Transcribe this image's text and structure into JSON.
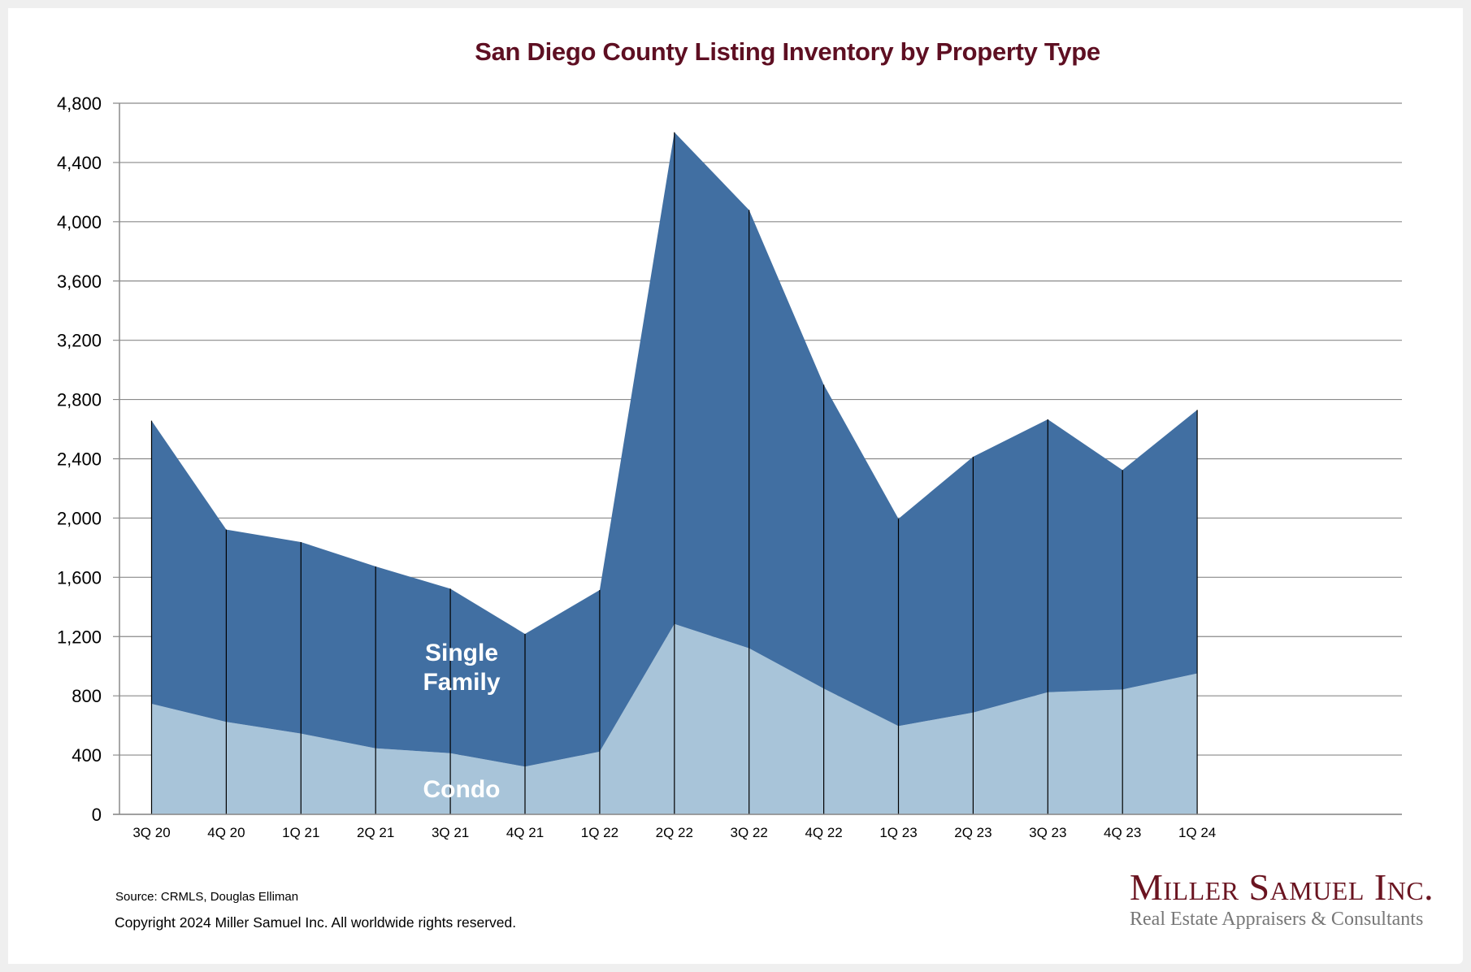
{
  "chart_data": {
    "type": "area",
    "stacked": true,
    "title": "San Diego County Listing Inventory by Property Type",
    "xlabel": "",
    "ylabel": "",
    "ylim": [
      0,
      4800
    ],
    "yticks": [
      0,
      400,
      800,
      1200,
      1600,
      2000,
      2400,
      2800,
      3200,
      3600,
      4000,
      4400,
      4800
    ],
    "ytick_labels": [
      "0",
      "400",
      "800",
      "1,200",
      "1,600",
      "2,000",
      "2,400",
      "2,800",
      "3,200",
      "3,600",
      "4,000",
      "4,400",
      "4,800"
    ],
    "grid": true,
    "categories": [
      "3Q 20",
      "4Q 20",
      "1Q 21",
      "2Q 21",
      "3Q 21",
      "4Q 21",
      "1Q 22",
      "2Q 22",
      "3Q 22",
      "4Q 22",
      "1Q 23",
      "2Q 23",
      "3Q 23",
      "4Q 23",
      "1Q 24"
    ],
    "series": [
      {
        "name": "Condo",
        "color": "#a8c4d9",
        "values": [
          746,
          624,
          545,
          446,
          413,
          322,
          423,
          1285,
          1121,
          849,
          596,
          687,
          824,
          843,
          951
        ]
      },
      {
        "name": "Single Family",
        "color": "#416fa2",
        "values": [
          1911,
          1298,
          1293,
          1227,
          1110,
          896,
          1091,
          3319,
          2958,
          2051,
          1399,
          1727,
          1842,
          1481,
          1779
        ]
      }
    ],
    "totals": [
      2657,
      1922,
      1838,
      1673,
      1523,
      1218,
      1514,
      4604,
      4079,
      2900,
      1995,
      2414,
      2666,
      2324,
      2730
    ],
    "annotations": [
      {
        "text_line1": "Single",
        "text_line2": "Family",
        "series": "Single Family"
      },
      {
        "text": "Condo",
        "series": "Condo"
      }
    ],
    "legend": "inline-labels"
  },
  "footer": {
    "source": "Source: CRMLS, Douglas Elliman",
    "copyright": "Copyright 2024 Miller Samuel Inc.  All worldwide rights reserved."
  },
  "logo": {
    "name": "Miller Samuel Inc.",
    "tagline": "Real Estate Appraisers & Consultants"
  }
}
